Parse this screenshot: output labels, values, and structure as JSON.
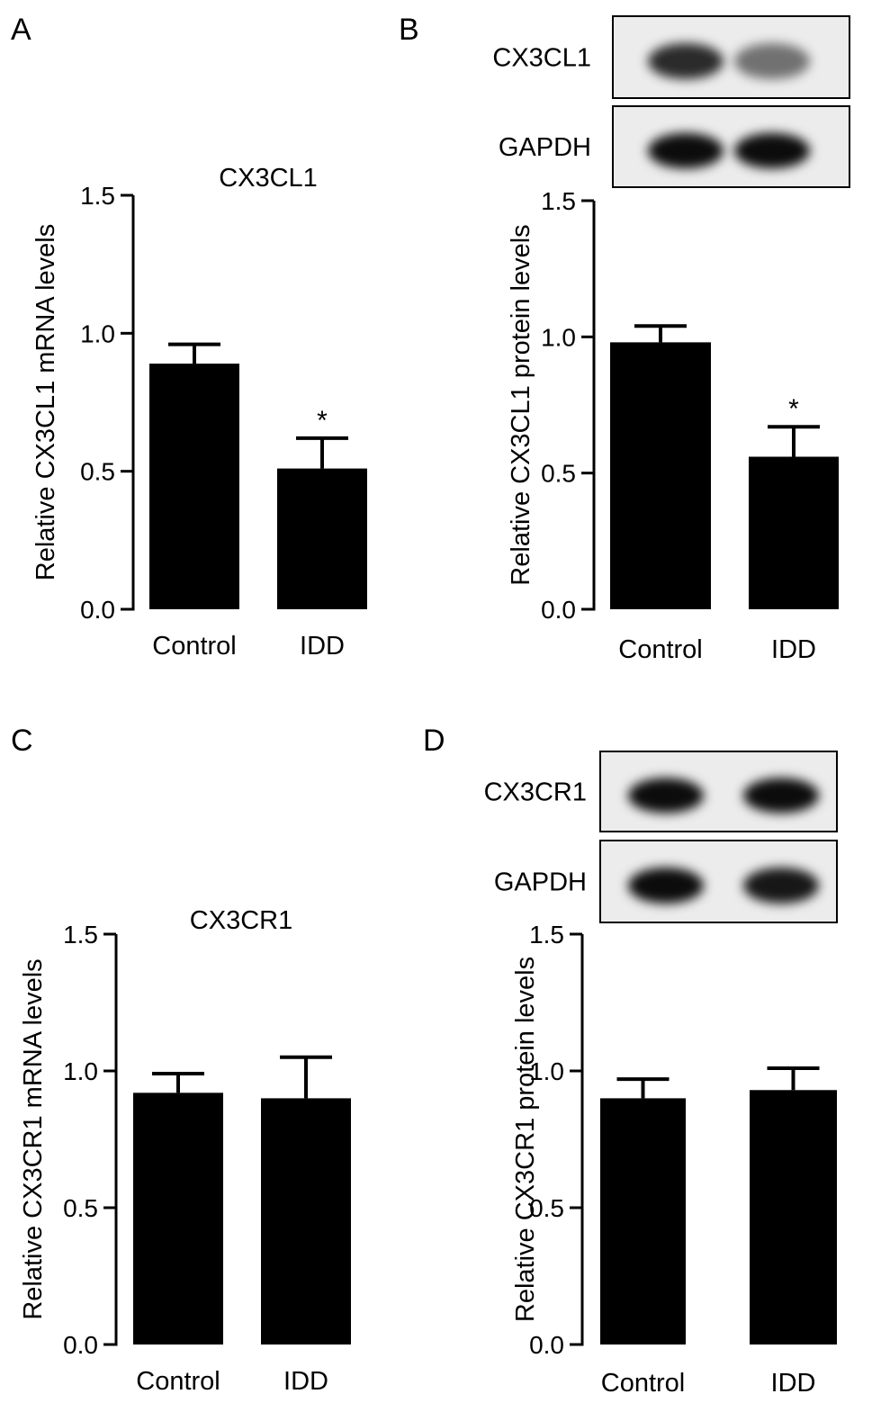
{
  "panels": [
    {
      "letter": "A",
      "blot": null
    },
    {
      "letter": "B",
      "blot": {
        "top_label": "CX3CL1",
        "bottom_label": "GAPDH",
        "top_intensity": [
          0.82,
          0.52
        ],
        "bottom_intensity": [
          0.95,
          0.95
        ]
      }
    },
    {
      "letter": "C",
      "blot": null
    },
    {
      "letter": "D",
      "blot": {
        "top_label": "CX3CR1",
        "bottom_label": "GAPDH",
        "top_intensity": [
          0.95,
          0.95
        ],
        "bottom_intensity": [
          0.95,
          0.9
        ]
      }
    }
  ],
  "chart_data": [
    {
      "type": "bar",
      "panel": "A",
      "title": "CX3CL1",
      "ylabel": "Relative CX3CL1 mRNA levels",
      "categories": [
        "Control",
        "IDD"
      ],
      "values": [
        0.89,
        0.51
      ],
      "errors": [
        0.07,
        0.11
      ],
      "significance": [
        "",
        "*"
      ],
      "ylim": [
        0,
        1.5
      ],
      "yticks": [
        "0.0",
        "0.5",
        "1.0",
        "1.5"
      ]
    },
    {
      "type": "bar",
      "panel": "B",
      "title": "",
      "ylabel": "Relative CX3CL1 protein levels",
      "categories": [
        "Control",
        "IDD"
      ],
      "values": [
        0.98,
        0.56
      ],
      "errors": [
        0.06,
        0.11
      ],
      "significance": [
        "",
        "*"
      ],
      "ylim": [
        0,
        1.5
      ],
      "yticks": [
        "0.0",
        "0.5",
        "1.0",
        "1.5"
      ]
    },
    {
      "type": "bar",
      "panel": "C",
      "title": "CX3CR1",
      "ylabel": "Relative CX3CR1 mRNA levels",
      "categories": [
        "Control",
        "IDD"
      ],
      "values": [
        0.92,
        0.9
      ],
      "errors": [
        0.07,
        0.15
      ],
      "significance": [
        "",
        ""
      ],
      "ylim": [
        0,
        1.5
      ],
      "yticks": [
        "0.0",
        "0.5",
        "1.0",
        "1.5"
      ]
    },
    {
      "type": "bar",
      "panel": "D",
      "title": "",
      "ylabel": "Relative CX3CR1 protein levels",
      "categories": [
        "Control",
        "IDD"
      ],
      "values": [
        0.9,
        0.93
      ],
      "errors": [
        0.07,
        0.08
      ],
      "significance": [
        "",
        ""
      ],
      "ylim": [
        0,
        1.5
      ],
      "yticks": [
        "0.0",
        "0.5",
        "1.0",
        "1.5"
      ]
    }
  ]
}
